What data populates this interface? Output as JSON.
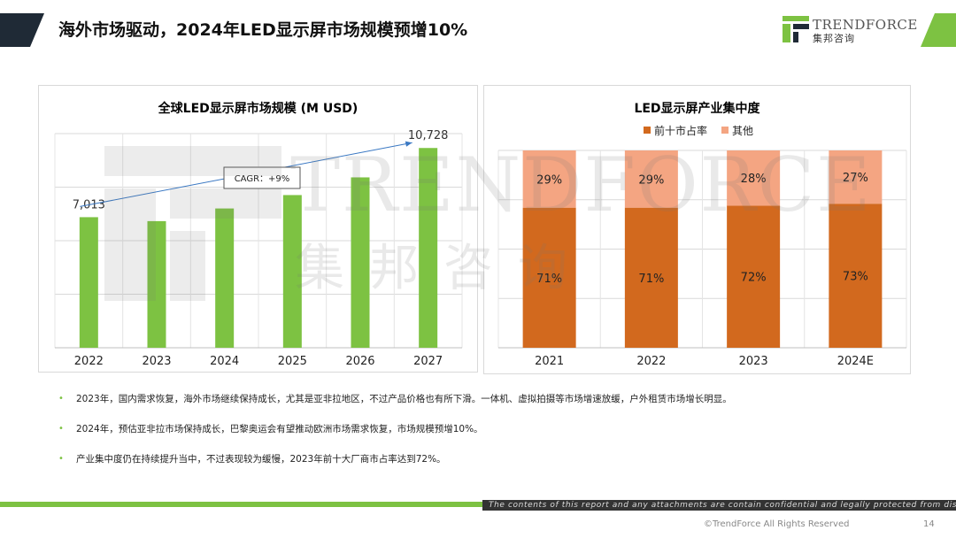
{
  "slide": {
    "title": "海外市场驱动，2024年LED显示屏市场规模预增10%",
    "page_number": "14",
    "colors": {
      "accent_green": "#7dc242",
      "dark_navy": "#1f2a36",
      "orange": "#d2691e",
      "salmon": "#f4a582"
    }
  },
  "logo": {
    "name": "TRENDFORCE",
    "sub": "集邦咨询"
  },
  "watermark": {
    "name": "TRENDFORCE",
    "sub": "集邦咨询"
  },
  "chart_data": [
    {
      "type": "bar",
      "title": "全球LED显示屏市场规模 (M USD)",
      "categories": [
        "2022",
        "2023",
        "2024",
        "2025",
        "2026",
        "2027"
      ],
      "values": [
        7013,
        6800,
        7480,
        8200,
        9150,
        10728
      ],
      "data_labels": {
        "2022": "7,013",
        "2027": "10,728"
      },
      "annotation": "CAGR：+9%",
      "ylim": [
        0,
        11500
      ],
      "color": "#7dc242",
      "grid": true
    },
    {
      "type": "bar",
      "stacked": true,
      "title": "LED显示屏产业集中度",
      "categories": [
        "2021",
        "2022",
        "2023",
        "2024E"
      ],
      "series": [
        {
          "name": "前十市占率",
          "values": [
            71,
            71,
            72,
            73
          ],
          "labels": [
            "71%",
            "71%",
            "72%",
            "73%"
          ],
          "color": "#d2691e"
        },
        {
          "name": "其他",
          "values": [
            29,
            29,
            28,
            27
          ],
          "labels": [
            "29%",
            "29%",
            "28%",
            "27%"
          ],
          "color": "#f4a582"
        }
      ],
      "ylim": [
        0,
        100
      ],
      "legend": "top",
      "grid": true
    }
  ],
  "bullets": [
    "2023年，国内需求恢复，海外市场继续保持成长，尤其是亚非拉地区，不过产品价格也有所下滑。一体机、虚拟拍摄等市场增速放缓，户外租赁市场增长明显。",
    "2024年，预估亚非拉市场保持成长，巴黎奥运会有望推动欧洲市场需求恢复，市场规模预增10%。",
    "产业集中度仍在持续提升当中，不过表现较为缓慢，2023年前十大厂商市占率达到72%。"
  ],
  "footer": {
    "disclaimer": "The contents of this report and any attachments are contain confidential and legally protected from disclosure.",
    "copyright": "©TrendForce All Rights Reserved"
  }
}
